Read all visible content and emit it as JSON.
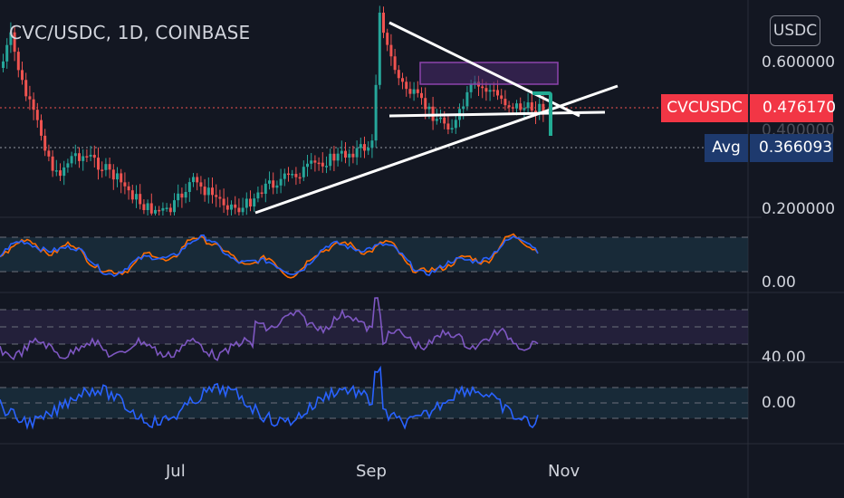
{
  "header": {
    "title": "CVC/USDC, 1D, COINBASE",
    "currency_button": "USDC"
  },
  "price_axis": {
    "labels": [
      "0.600000",
      "0.400000",
      "0.200000"
    ]
  },
  "symbol_tag": {
    "name": "CVCUSDC",
    "value": "0.476170",
    "color": "#f23645"
  },
  "avg_tag": {
    "name": "Avg",
    "value": "0.366093",
    "color": "#1e3a6e"
  },
  "indicator_axis": {
    "stoch_label": "0.00",
    "rsi_label": "40.00",
    "cci_label": "0.00"
  },
  "time_axis": {
    "labels": [
      "Jul",
      "Sep",
      "Nov"
    ]
  },
  "colors": {
    "background": "#131722",
    "up_candle": "#26a69a",
    "down_candle": "#ef5350",
    "stoch_k": "#2962ff",
    "stoch_d": "#ff6d00",
    "rsi": "#7e57c2",
    "cci": "#2962ff",
    "drawing": "#ffffff",
    "rectangle": "#9c27b0",
    "arrow": "#22ab94"
  },
  "icons": {
    "turn_arrow": "arrow-turn-down-icon"
  }
}
